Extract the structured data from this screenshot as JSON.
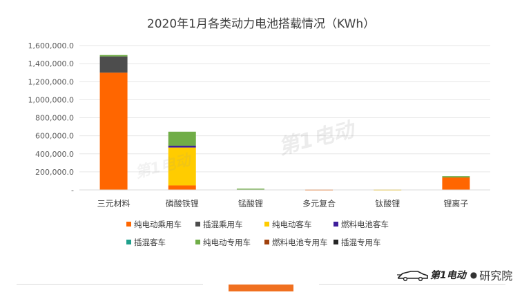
{
  "chart_data": {
    "type": "bar",
    "stacked": true,
    "title": "2020年1月各类动力电池搭载情况（KWh）",
    "xlabel": "",
    "ylabel": "",
    "ylim": [
      0,
      1600000
    ],
    "yticks": [
      0,
      200000,
      400000,
      600000,
      800000,
      1000000,
      1200000,
      1400000,
      1600000
    ],
    "ytick_labels": [
      "-",
      "200,000.0",
      "400,000.0",
      "600,000.0",
      "800,000.0",
      "1,000,000.0",
      "1,200,000.0",
      "1,400,000.0",
      "1,600,000.0"
    ],
    "grid": true,
    "legend_position": "bottom",
    "categories": [
      "三元材料",
      "磷酸铁锂",
      "锰酸锂",
      "多元复合",
      "钛酸锂",
      "锂离子"
    ],
    "series": [
      {
        "name": "纯电动乘用车",
        "color": "#FF6600",
        "values": [
          1300000,
          50000,
          0,
          5000,
          0,
          138000
        ]
      },
      {
        "name": "插混乘用车",
        "color": "#4D4D4D",
        "values": [
          180000,
          0,
          0,
          0,
          0,
          0
        ]
      },
      {
        "name": "纯电动客车",
        "color": "#FFCC00",
        "values": [
          0,
          420000,
          0,
          0,
          5000,
          0
        ]
      },
      {
        "name": "燃料电池客车",
        "color": "#3F1E9B",
        "values": [
          0,
          20000,
          0,
          0,
          0,
          0
        ]
      },
      {
        "name": "插混客车",
        "color": "#1FA08C",
        "values": [
          0,
          0,
          0,
          0,
          0,
          0
        ]
      },
      {
        "name": "纯电动专用车",
        "color": "#70AD47",
        "values": [
          15000,
          155000,
          14000,
          0,
          0,
          14000
        ]
      },
      {
        "name": "燃料电池专用车",
        "color": "#A0410D",
        "values": [
          0,
          0,
          0,
          0,
          0,
          0
        ]
      },
      {
        "name": "插混专用车",
        "color": "#262626",
        "values": [
          0,
          0,
          0,
          0,
          0,
          0
        ]
      }
    ]
  },
  "branding": {
    "logo_text": "第1电动",
    "suffix": "研究院",
    "watermark_text": "第1电动"
  }
}
